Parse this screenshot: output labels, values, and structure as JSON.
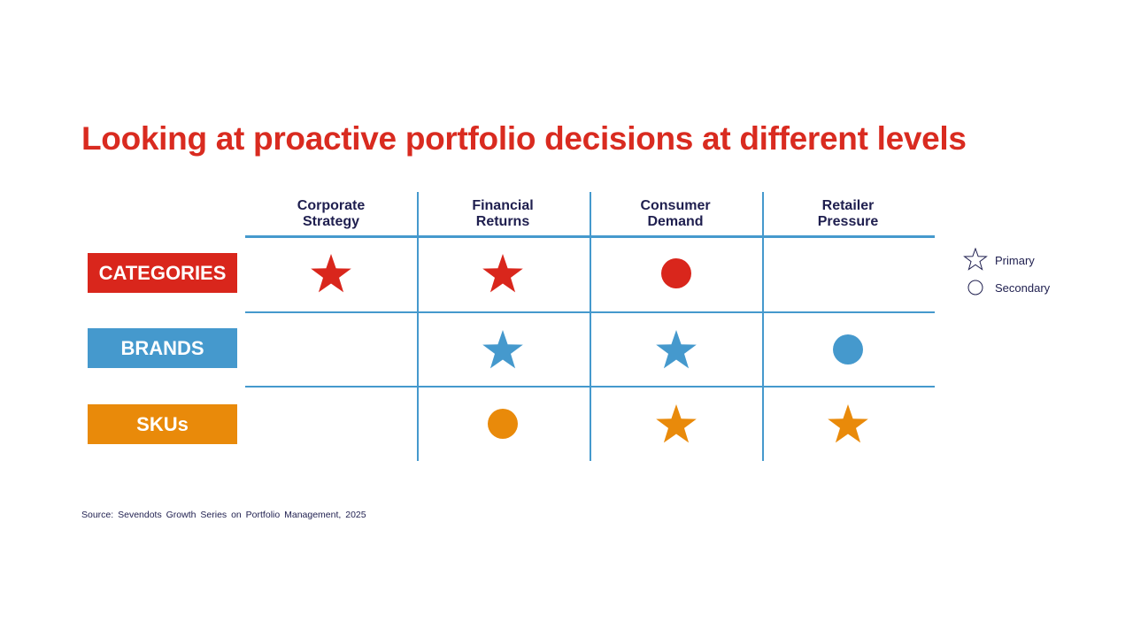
{
  "title": "Looking at proactive portfolio decisions at different levels",
  "columns": [
    "Corporate\nStrategy",
    "Financial\nReturns",
    "Consumer\nDemand",
    "Retailer\nPressure"
  ],
  "rows": [
    {
      "label": "CATEGORIES",
      "color": "#D9261C",
      "marks": [
        "primary",
        "primary",
        "secondary",
        ""
      ]
    },
    {
      "label": "BRANDS",
      "color": "#4599CD",
      "marks": [
        "",
        "primary",
        "primary",
        "secondary"
      ]
    },
    {
      "label": "SKUs",
      "color": "#E98A0A",
      "marks": [
        "",
        "secondary",
        "primary",
        "primary"
      ]
    }
  ],
  "legend": {
    "primary": "Primary",
    "secondary": "Secondary"
  },
  "source": "Source: Sevendots Growth Series on Portfolio Management, 2025"
}
